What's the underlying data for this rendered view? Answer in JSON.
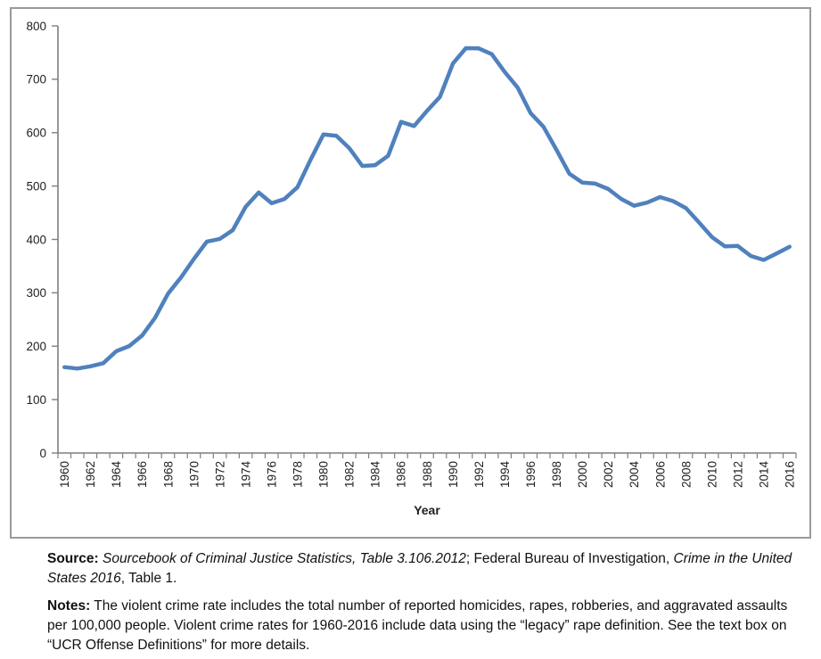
{
  "chart_data": {
    "type": "line",
    "title": "",
    "xlabel": "Year",
    "ylabel": "",
    "ylim": [
      0,
      800
    ],
    "y_tick_step": 100,
    "x_label_every": 2,
    "grid": false,
    "legend": false,
    "x": [
      1960,
      1961,
      1962,
      1963,
      1964,
      1965,
      1966,
      1967,
      1968,
      1969,
      1970,
      1971,
      1972,
      1973,
      1974,
      1975,
      1976,
      1977,
      1978,
      1979,
      1980,
      1981,
      1982,
      1983,
      1984,
      1985,
      1986,
      1987,
      1988,
      1989,
      1990,
      1991,
      1992,
      1993,
      1994,
      1995,
      1996,
      1997,
      1998,
      1999,
      2000,
      2001,
      2002,
      2003,
      2004,
      2005,
      2006,
      2007,
      2008,
      2009,
      2010,
      2011,
      2012,
      2013,
      2014,
      2015,
      2016
    ],
    "values": [
      160.9,
      158.1,
      162.3,
      168.2,
      190.6,
      200.2,
      220.0,
      253.2,
      298.4,
      328.7,
      363.5,
      396.0,
      401.0,
      417.4,
      461.1,
      487.8,
      467.8,
      475.9,
      497.8,
      548.9,
      596.6,
      594.3,
      571.1,
      537.7,
      539.2,
      556.6,
      620.1,
      612.5,
      640.6,
      666.9,
      729.6,
      758.2,
      757.7,
      747.1,
      713.6,
      684.5,
      636.6,
      611.0,
      567.6,
      523.0,
      506.5,
      504.5,
      494.4,
      475.8,
      463.2,
      469.0,
      479.3,
      471.8,
      458.6,
      431.9,
      404.5,
      387.1,
      387.8,
      369.1,
      361.6,
      373.7,
      386.3
    ]
  },
  "style": {
    "line_color": "#4F81BD",
    "axis_color": "#7f7f7f",
    "tick_label_color": "#1f1f1f",
    "frame_border_color": "#9a9a9a"
  },
  "caption": {
    "source_label": "Source:",
    "source_italic_1": " Sourcebook of Criminal Justice Statistics, Table 3.106.2012",
    "source_mid": "; Federal Bureau of Investigation, ",
    "source_italic_2": "Crime in the United States 2016",
    "source_tail": ", Table 1.",
    "notes_label": "Notes:",
    "notes_text": " The violent crime rate includes the total number of reported homicides, rapes, robberies, and aggravated assaults per 100,000 people. Violent crime rates for 1960-2016 include data using the “legacy” rape definition. See the text box on “UCR Offense Definitions” for more details."
  }
}
